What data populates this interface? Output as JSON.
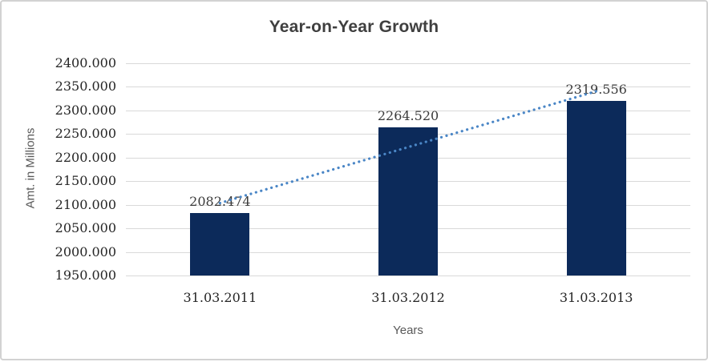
{
  "window": {
    "background": "#ffffff",
    "frame_border_color": "#d2d2d2"
  },
  "chart_data": {
    "type": "bar",
    "title": "Year-on-Year Growth",
    "xlabel": "Years",
    "ylabel": "Amt. in Millions",
    "categories": [
      "31.03.2011",
      "31.03.2012",
      "31.03.2013"
    ],
    "values": [
      2082.474,
      2264.52,
      2319.556
    ],
    "data_labels": [
      "2082.474",
      "2264.520",
      "2319.556"
    ],
    "ylim": [
      1950,
      2400
    ],
    "ytick_step": 50,
    "ytick_labels": [
      "1950.000",
      "2000.000",
      "2050.000",
      "2100.000",
      "2150.000",
      "2200.000",
      "2250.000",
      "2300.000",
      "2350.000",
      "2400.000"
    ],
    "grid": true,
    "legend": false,
    "trendline": {
      "type": "linear",
      "style": "dotted"
    },
    "colors": {
      "bar": "#0c2a5a",
      "trendline": "#4a86c6",
      "gridline": "#d9d9d9",
      "title": "#3f3f3f",
      "axis_title": "#595959",
      "tick_label": "#262626",
      "data_label": "#3a3a3a"
    }
  }
}
